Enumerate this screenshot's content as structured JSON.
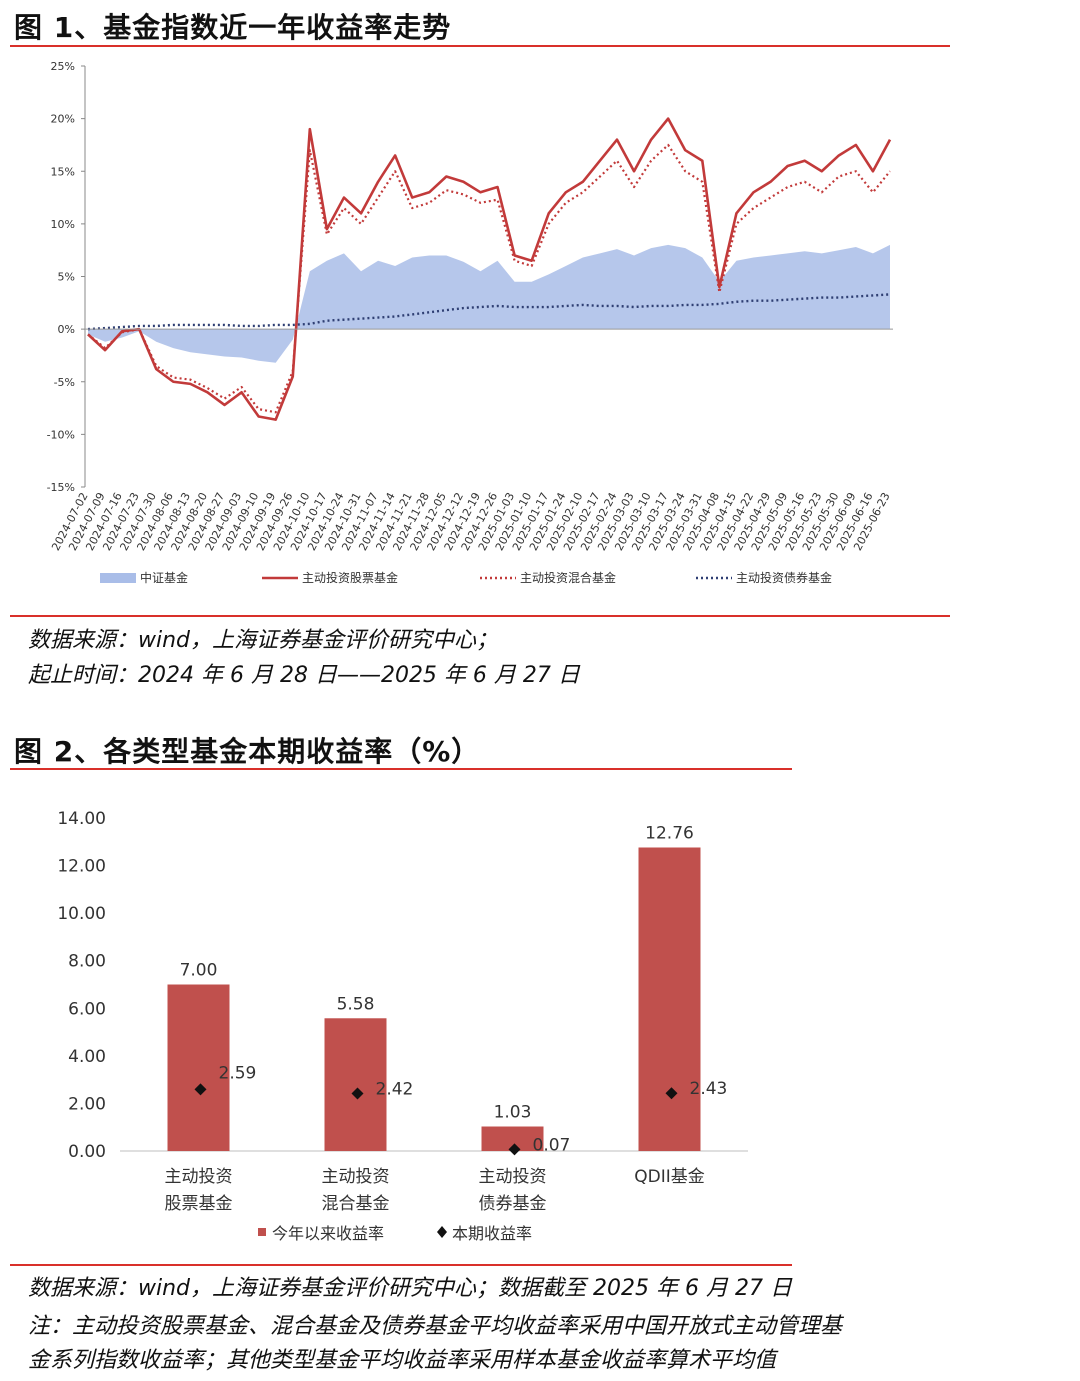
{
  "fig1": {
    "title": "图 1、基金指数近一年收益率走势",
    "source_line1": "数据来源：wind，上海证券基金评价研究中心；",
    "source_line2": "起止时间：2024 年 6 月 28 日——2025 年 6 月 27 日"
  },
  "fig2": {
    "title": "图 2、各类型基金本期收益率（%）",
    "source_line1": "数据来源：wind，上海证券基金评价研究中心；数据截至 2025 年 6 月 27 日",
    "source_line2": "注：主动投资股票基金、混合基金及债券基金平均收益率采用中国开放式主动管理基",
    "source_line3": "金系列指数收益率；其他类型基金平均收益率采用样本基金收益率算术平均值"
  },
  "colors": {
    "red": "#c0504d",
    "line_red": "#c23a3a",
    "area_blue": "#a9bde8",
    "navy": "#2f3f73",
    "rule": "#d9302a"
  },
  "chart_data": [
    {
      "type": "line",
      "ylim": [
        -15,
        25
      ],
      "yticks": [
        "25%",
        "20%",
        "15%",
        "10%",
        "5%",
        "0%",
        "-5%",
        "-10%",
        "-15%"
      ],
      "ytick_values": [
        25,
        20,
        15,
        10,
        5,
        0,
        -5,
        -10,
        -15
      ],
      "x": [
        "2024-07-02",
        "2024-07-09",
        "2024-07-16",
        "2024-07-23",
        "2024-07-30",
        "2024-08-06",
        "2024-08-13",
        "2024-08-20",
        "2024-08-27",
        "2024-09-03",
        "2024-09-10",
        "2024-09-19",
        "2024-09-26",
        "2024-10-10",
        "2024-10-17",
        "2024-10-24",
        "2024-10-31",
        "2024-11-07",
        "2024-11-14",
        "2024-11-21",
        "2024-11-28",
        "2024-12-05",
        "2024-12-12",
        "2024-12-19",
        "2024-12-26",
        "2025-01-03",
        "2025-01-10",
        "2025-01-17",
        "2025-01-24",
        "2025-02-10",
        "2025-02-17",
        "2025-02-24",
        "2025-03-03",
        "2025-03-10",
        "2025-03-17",
        "2025-03-24",
        "2025-03-31",
        "2025-04-08",
        "2025-04-15",
        "2025-04-22",
        "2025-04-29",
        "2025-05-09",
        "2025-05-16",
        "2025-05-23",
        "2025-05-30",
        "2025-06-09",
        "2025-06-16",
        "2025-06-23"
      ],
      "series": [
        {
          "name": "中证基金",
          "style": "area",
          "values": [
            -0.5,
            -1.2,
            -0.8,
            -0.2,
            -1.2,
            -1.8,
            -2.2,
            -2.4,
            -2.6,
            -2.7,
            -3.0,
            -3.2,
            -1.0,
            5.5,
            6.5,
            7.2,
            5.5,
            6.5,
            6.0,
            6.8,
            7.0,
            7.0,
            6.4,
            5.5,
            6.5,
            4.5,
            4.5,
            5.2,
            6.0,
            6.8,
            7.2,
            7.6,
            7.0,
            7.7,
            8.0,
            7.7,
            6.8,
            4.5,
            6.5,
            6.8,
            7.0,
            7.2,
            7.4,
            7.2,
            7.5,
            7.8,
            7.2,
            8.0
          ]
        },
        {
          "name": "主动投资股票基金",
          "style": "solid",
          "values": [
            -0.5,
            -2.0,
            -0.2,
            0.0,
            -3.8,
            -5.0,
            -5.2,
            -6.0,
            -7.2,
            -6.0,
            -8.3,
            -8.6,
            -4.5,
            19.0,
            9.5,
            12.5,
            11.0,
            14.0,
            16.5,
            12.5,
            13.0,
            14.5,
            14.0,
            13.0,
            13.5,
            7.0,
            6.5,
            11.0,
            13.0,
            14.0,
            16.0,
            18.0,
            15.0,
            18.0,
            20.0,
            17.0,
            16.0,
            4.0,
            11.0,
            13.0,
            14.0,
            15.5,
            16.0,
            15.0,
            16.5,
            17.5,
            15.0,
            18.0
          ]
        },
        {
          "name": "主动投资混合基金",
          "style": "dotted",
          "values": [
            -0.5,
            -1.8,
            -0.3,
            0.0,
            -3.5,
            -4.6,
            -4.8,
            -5.6,
            -6.6,
            -5.5,
            -7.6,
            -7.9,
            -4.0,
            17.0,
            9.0,
            11.5,
            10.0,
            12.5,
            15.0,
            11.5,
            12.0,
            13.2,
            12.8,
            12.0,
            12.3,
            6.5,
            6.0,
            10.0,
            12.0,
            13.0,
            14.5,
            16.0,
            13.5,
            16.0,
            17.5,
            15.0,
            14.0,
            3.5,
            10.0,
            11.5,
            12.5,
            13.5,
            14.0,
            13.0,
            14.5,
            15.0,
            13.0,
            15.0
          ]
        },
        {
          "name": "主动投资债券基金",
          "style": "dotted",
          "values": [
            0.0,
            0.1,
            0.2,
            0.3,
            0.3,
            0.4,
            0.4,
            0.4,
            0.4,
            0.3,
            0.3,
            0.4,
            0.4,
            0.5,
            0.8,
            0.9,
            1.0,
            1.1,
            1.2,
            1.4,
            1.6,
            1.8,
            2.0,
            2.1,
            2.2,
            2.1,
            2.1,
            2.1,
            2.2,
            2.3,
            2.2,
            2.2,
            2.1,
            2.2,
            2.2,
            2.3,
            2.3,
            2.4,
            2.6,
            2.7,
            2.7,
            2.8,
            2.9,
            3.0,
            3.0,
            3.1,
            3.2,
            3.3
          ]
        }
      ]
    },
    {
      "type": "bar",
      "categories": [
        [
          "主动投资",
          "股票基金"
        ],
        [
          "主动投资",
          "混合基金"
        ],
        [
          "主动投资",
          "债券基金"
        ],
        [
          "QDII基金"
        ]
      ],
      "ylim": [
        0,
        14
      ],
      "yticks": [
        "14.00",
        "12.00",
        "10.00",
        "8.00",
        "6.00",
        "4.00",
        "2.00",
        "0.00"
      ],
      "ytick_values": [
        14,
        12,
        10,
        8,
        6,
        4,
        2,
        0
      ],
      "series": [
        {
          "name": "今年以来收益率",
          "style": "bar",
          "values": [
            7.0,
            5.58,
            1.03,
            12.76
          ],
          "labels": [
            "7.00",
            "5.58",
            "1.03",
            "12.76"
          ]
        },
        {
          "name": "本期收益率",
          "style": "marker",
          "values": [
            2.59,
            2.42,
            0.07,
            2.43
          ],
          "labels": [
            "2.59",
            "2.42",
            "0.07",
            "2.43"
          ]
        }
      ]
    }
  ]
}
